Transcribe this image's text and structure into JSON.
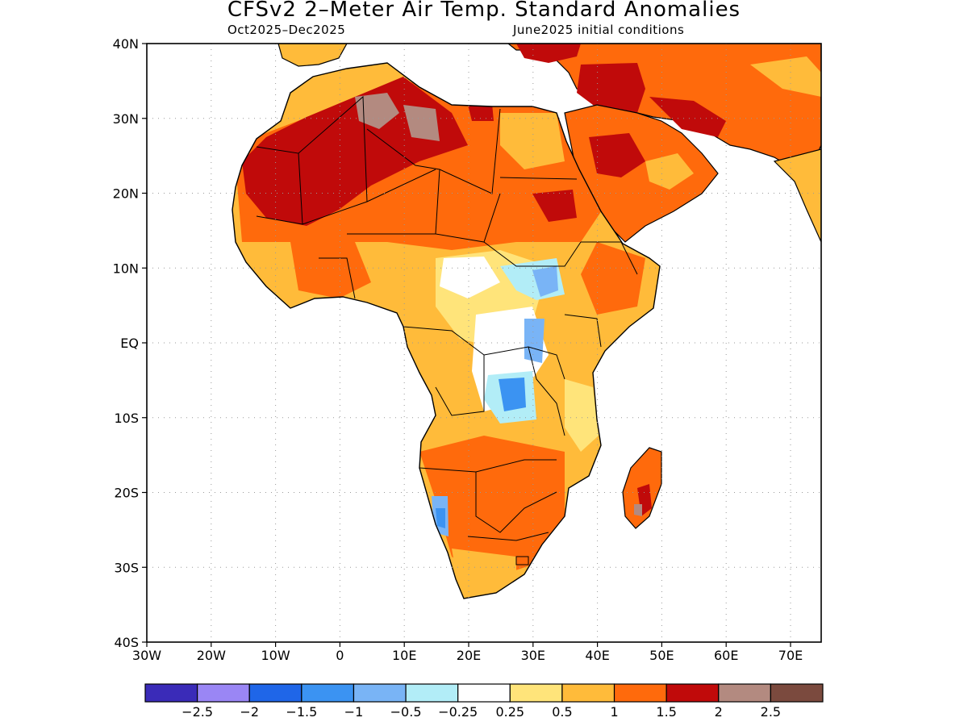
{
  "title": "CFSv2 2–Meter Air Temp. Standard Anomalies",
  "subtitle_left": "Oct2025–Dec2025",
  "subtitle_right": "June2025 initial conditions",
  "y_ticks": [
    "40N",
    "30N",
    "20N",
    "10N",
    "EQ",
    "10S",
    "20S",
    "30S",
    "40S"
  ],
  "x_ticks": [
    "30W",
    "20W",
    "10W",
    "0",
    "10E",
    "20E",
    "30E",
    "40E",
    "50E",
    "60E",
    "70E"
  ],
  "colorbar": {
    "colors": [
      "#3a2bb8",
      "#9a86f5",
      "#1f66e8",
      "#3b93f2",
      "#79b4f6",
      "#b2edf7",
      "#ffffff",
      "#ffe47a",
      "#ffbb3a",
      "#ff6a0c",
      "#c00a0a",
      "#b38a80",
      "#7b4a3e"
    ],
    "labels": [
      "−2.5",
      "−2",
      "−1.5",
      "−1",
      "−0.5",
      "−0.25",
      "0.25",
      "0.5",
      "1",
      "1.5",
      "2",
      "2.5"
    ]
  }
}
